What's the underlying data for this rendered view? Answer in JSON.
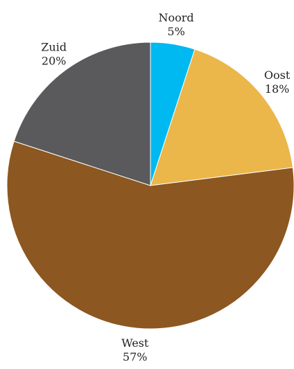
{
  "chart_data": {
    "type": "pie",
    "title": "",
    "slices": [
      {
        "label": "Noord",
        "value": 5,
        "value_label": "5%",
        "color": "#00b9f1"
      },
      {
        "label": "Oost",
        "value": 18,
        "value_label": "18%",
        "color": "#ebb64a"
      },
      {
        "label": "West",
        "value": 57,
        "value_label": "57%",
        "color": "#8c5720"
      },
      {
        "label": "Zuid",
        "value": 20,
        "value_label": "20%",
        "color": "#5a5a5c"
      }
    ],
    "start_angle": "12 o'clock",
    "direction": "clockwise",
    "labels": "outside"
  }
}
